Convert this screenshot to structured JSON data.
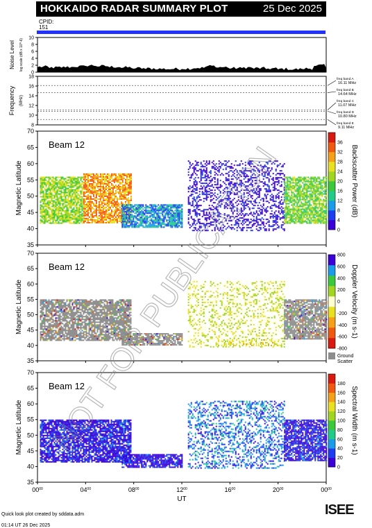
{
  "header": {
    "title": "HOKKAIDO RADAR SUMMARY PLOT",
    "date": "25 Dec 2025",
    "cpid_label": "CPID:",
    "cpid_value": "151"
  },
  "footer": {
    "credit": "Quick look plot created by sddata.adm",
    "timestamp": "01:14 UT 26 Dec 2025",
    "logo_text": "ISEE"
  },
  "watermark": "NOT FOR PUBLICATION",
  "colors": {
    "title_bg": "#000000",
    "cpid_bar": "#2233ff",
    "ground_scatter": "#8c8c8c",
    "logo_accent": "#27a34a"
  },
  "chart_data": [
    {
      "type": "area",
      "panel": "noise",
      "ylabel": "Noise Level",
      "yunit": "log scale (dB x 10^-6)",
      "ylim": [
        0,
        10
      ],
      "yticks": [
        "0",
        "2",
        "4",
        "6",
        "8",
        "10"
      ],
      "x": [
        0,
        1,
        2,
        3,
        4,
        5,
        6,
        7,
        8,
        9,
        10,
        11,
        12,
        13,
        14,
        15,
        16,
        17,
        18,
        19,
        20,
        21,
        22,
        23,
        24
      ],
      "values": [
        1.4,
        1.2,
        1.3,
        1.5,
        1.8,
        1.6,
        1.4,
        1.2,
        1.0,
        0.9,
        0.8,
        0.8,
        0.9,
        1.1,
        1.6,
        1.3,
        1.0,
        1.2,
        1.0,
        0.9,
        0.8,
        0.7,
        0.9,
        1.8,
        1.2
      ]
    },
    {
      "type": "line",
      "panel": "frequency",
      "ylabel": "Frequency",
      "yunit": "(MHz)",
      "ylim": [
        8,
        18
      ],
      "yticks": [
        "8",
        "10",
        "12",
        "14",
        "16",
        "18"
      ],
      "bands": [
        {
          "name": "freq band A",
          "value": 16.11,
          "label": "freq band A",
          "value_label": "16.11 MHz"
        },
        {
          "name": "freq band B",
          "value": 14.64,
          "label": "freq band B",
          "value_label": "14.64 MHz"
        },
        {
          "name": "freq band C",
          "value": 11.07,
          "label": "freq band C",
          "value_label": "11.07 MHz"
        },
        {
          "name": "freq band D",
          "value": 10.8,
          "label": "freq band D",
          "value_label": "10.80 MHz"
        },
        {
          "name": "freq band E",
          "value": 9.11,
          "label": "freq band E",
          "value_label": "9.11 MHz"
        }
      ]
    },
    {
      "type": "heatmap",
      "panel": "power",
      "beam_label": "Beam 12",
      "ylabel": "Magnetic Latitude",
      "ylim": [
        35,
        70
      ],
      "yticks": [
        "35",
        "40",
        "45",
        "50",
        "55",
        "60",
        "65",
        "70"
      ],
      "colorbar_label": "Backscatter Power (dB)",
      "colorbar_range": [
        0,
        40
      ],
      "colorbar_ticks": [
        "0",
        "4",
        "8",
        "12",
        "16",
        "20",
        "24",
        "28",
        "32",
        "36"
      ],
      "regions": [
        {
          "t0": 0.2,
          "t1": 3.7,
          "lat0": 41.5,
          "lat1": 56,
          "value": 22
        },
        {
          "t0": 3.8,
          "t1": 7.8,
          "lat0": 42.0,
          "lat1": 57,
          "value": 30
        },
        {
          "t0": 7.0,
          "t1": 12.0,
          "lat0": 40.5,
          "lat1": 47.5,
          "value": 10
        },
        {
          "t0": 12.5,
          "t1": 20.5,
          "lat0": 39.5,
          "lat1": 61,
          "value": 2
        },
        {
          "t0": 20.5,
          "t1": 24.0,
          "lat0": 41.5,
          "lat1": 56,
          "value": 20
        }
      ]
    },
    {
      "type": "heatmap",
      "panel": "velocity",
      "beam_label": "Beam 12",
      "ylabel": "Magnetic Latitude",
      "ylim": [
        35,
        70
      ],
      "yticks": [
        "35",
        "40",
        "45",
        "50",
        "55",
        "60",
        "65",
        "70"
      ],
      "colorbar_label": "Doppler Velocity (m s-1)",
      "colorbar_range": [
        -800,
        800
      ],
      "colorbar_ticks": [
        "-800",
        "-600",
        "-400",
        "-200",
        "0",
        "200",
        "400",
        "600",
        "800"
      ],
      "ground_scatter_label": "Ground Scatter",
      "regions": [
        {
          "t0": 0.2,
          "t1": 7.8,
          "lat0": 41.5,
          "lat1": 55,
          "value": "ground"
        },
        {
          "t0": 7.0,
          "t1": 12.0,
          "lat0": 40.0,
          "lat1": 44,
          "value": "ground"
        },
        {
          "t0": 12.5,
          "t1": 20.5,
          "lat0": 39.5,
          "lat1": 61,
          "value": 0
        },
        {
          "t0": 15.0,
          "t1": 20.0,
          "lat0": 40.0,
          "lat1": 42,
          "value": -100
        },
        {
          "t0": 20.5,
          "t1": 24.0,
          "lat0": 42.0,
          "lat1": 55,
          "value": "ground"
        }
      ]
    },
    {
      "type": "heatmap",
      "panel": "width",
      "beam_label": "Beam 12",
      "ylabel": "Magnetic Latitude",
      "ylim": [
        35,
        70
      ],
      "yticks": [
        "35",
        "40",
        "45",
        "50",
        "55",
        "60",
        "65",
        "70"
      ],
      "xlabel": "UT",
      "xticks": [
        "00",
        "04",
        "08",
        "12",
        "16",
        "20",
        "00"
      ],
      "xtick_suffix": "00",
      "colorbar_label": "Spectral Width (m s-1)",
      "colorbar_range": [
        0,
        200
      ],
      "colorbar_ticks": [
        "0",
        "20",
        "40",
        "60",
        "80",
        "100",
        "120",
        "140",
        "160",
        "180"
      ],
      "regions": [
        {
          "t0": 0.2,
          "t1": 7.8,
          "lat0": 41.5,
          "lat1": 55,
          "value": 15
        },
        {
          "t0": 7.0,
          "t1": 12.0,
          "lat0": 40.0,
          "lat1": 44,
          "value": 15
        },
        {
          "t0": 12.5,
          "t1": 20.5,
          "lat0": 39.5,
          "lat1": 61,
          "value": 40
        },
        {
          "t0": 20.5,
          "t1": 24.0,
          "lat0": 42.0,
          "lat1": 55,
          "value": 15
        }
      ]
    }
  ]
}
